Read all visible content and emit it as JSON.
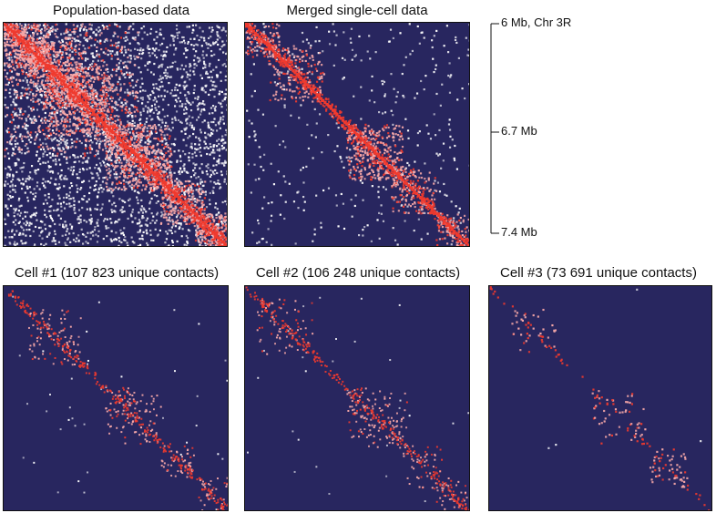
{
  "titles": {
    "population": "Population-based data",
    "merged": "Merged single-cell data",
    "cell1": "Cell #1 (107 823 unique contacts)",
    "cell2": "Cell #2 (106 248 unique contacts)",
    "cell3": "Cell #3 (73 691 unique contacts)"
  },
  "axis": {
    "top_label": "6 Mb, Chr 3R",
    "mid_label": "6.7 Mb",
    "bottom_label": "7.4 Mb"
  },
  "colors": {
    "background": "#28265f",
    "diagonal": "#f03a2e",
    "contact": "#f7a8a8",
    "sparse": "#ffffff"
  }
}
